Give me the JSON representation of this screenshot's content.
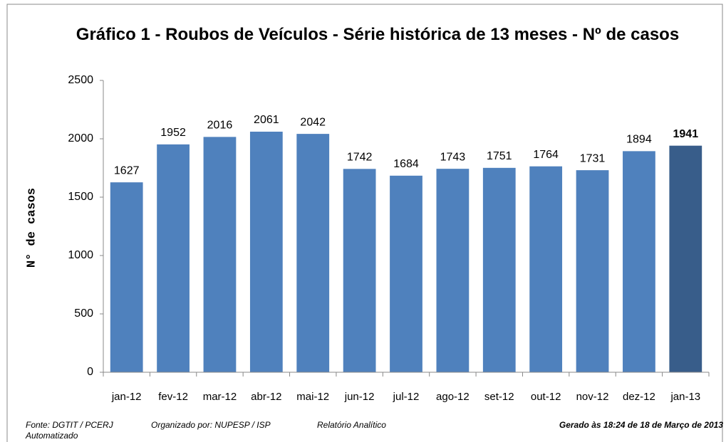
{
  "chart_data": {
    "type": "bar",
    "title": "Gráfico 1 - Roubos de Veículos - Série histórica de 13 meses - Nº de casos",
    "y_label": "N° de casos",
    "categories": [
      "jan-12",
      "fev-12",
      "mar-12",
      "abr-12",
      "mai-12",
      "jun-12",
      "jul-12",
      "ago-12",
      "set-12",
      "out-12",
      "nov-12",
      "dez-12",
      "jan-13"
    ],
    "values": [
      1627,
      1952,
      2016,
      2061,
      2042,
      1742,
      1684,
      1743,
      1751,
      1764,
      1731,
      1894,
      1941
    ],
    "color": "#4f81bd",
    "colors": [
      "#4f81bd",
      "#4f81bd",
      "#4f81bd",
      "#4f81bd",
      "#4f81bd",
      "#4f81bd",
      "#4f81bd",
      "#4f81bd",
      "#4f81bd",
      "#4f81bd",
      "#4f81bd",
      "#4f81bd",
      "#385d8a"
    ],
    "ylim": [
      0,
      2500
    ],
    "yticks": [
      0,
      500,
      1000,
      1500,
      2000,
      2500
    ],
    "grid": false
  },
  "footer": {
    "source": "Fonte: DGTIT / PCERJ",
    "organizer": "Organizado por: NUPESP / ISP",
    "report": "Relatório Analítico",
    "report_cont": "Automatizado",
    "generated": "Gerado às 18:24 de 18 de Março de 2013"
  }
}
